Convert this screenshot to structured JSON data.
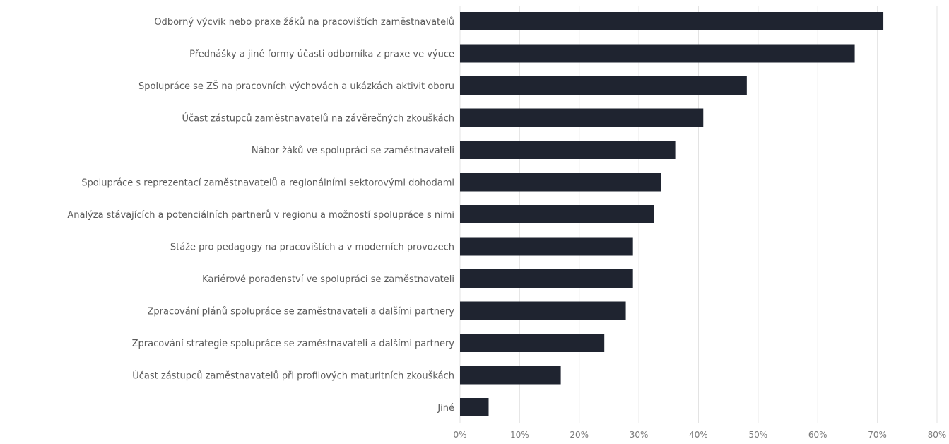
{
  "chart_data": {
    "type": "bar",
    "orientation": "horizontal",
    "title": "",
    "xlabel": "",
    "ylabel": "",
    "categories": [
      "Odborný výcvik nebo praxe žáků na pracovištích zaměstnavatelů",
      "Přednášky a jiné formy účasti odborníka z praxe ve výuce",
      "Spolupráce se ZŠ na pracovních výchovách a ukázkách aktivit oboru",
      "Účast zástupců zaměstnavatelů na závěrečných zkouškách",
      "Nábor žáků ve spolupráci se zaměstnavateli",
      "Spolupráce s reprezentací zaměstnavatelů a regionálními sektorovými dohodami",
      "Analýza stávajících a potenciálních partnerů v regionu a možností spolupráce s nimi",
      "Stáže pro pedagogy na pracovištích a v moderních provozech",
      "Kariérové poradenství ve spolupráci se zaměstnavateli",
      "Zpracování plánů spolupráce se zaměstnavateli a dalšími partnery",
      "Zpracování strategie spolupráce se zaměstnavateli a dalšími partnery",
      "Účast zástupců zaměstnavatelů při profilových maturitních zkouškách",
      "Jiné"
    ],
    "values": [
      71,
      66.2,
      48.1,
      40.8,
      36.1,
      33.7,
      32.5,
      29.0,
      29.0,
      27.8,
      24.2,
      16.9,
      4.8
    ],
    "xlim": [
      0,
      80
    ],
    "ticks": [
      0,
      10,
      20,
      30,
      40,
      50,
      60,
      70,
      80
    ],
    "tick_labels": [
      "0%",
      "10%",
      "20%",
      "30%",
      "40%",
      "50%",
      "60%",
      "70%",
      "80%"
    ],
    "grid": true,
    "legend": "none",
    "bar_color": "#1f2430"
  }
}
